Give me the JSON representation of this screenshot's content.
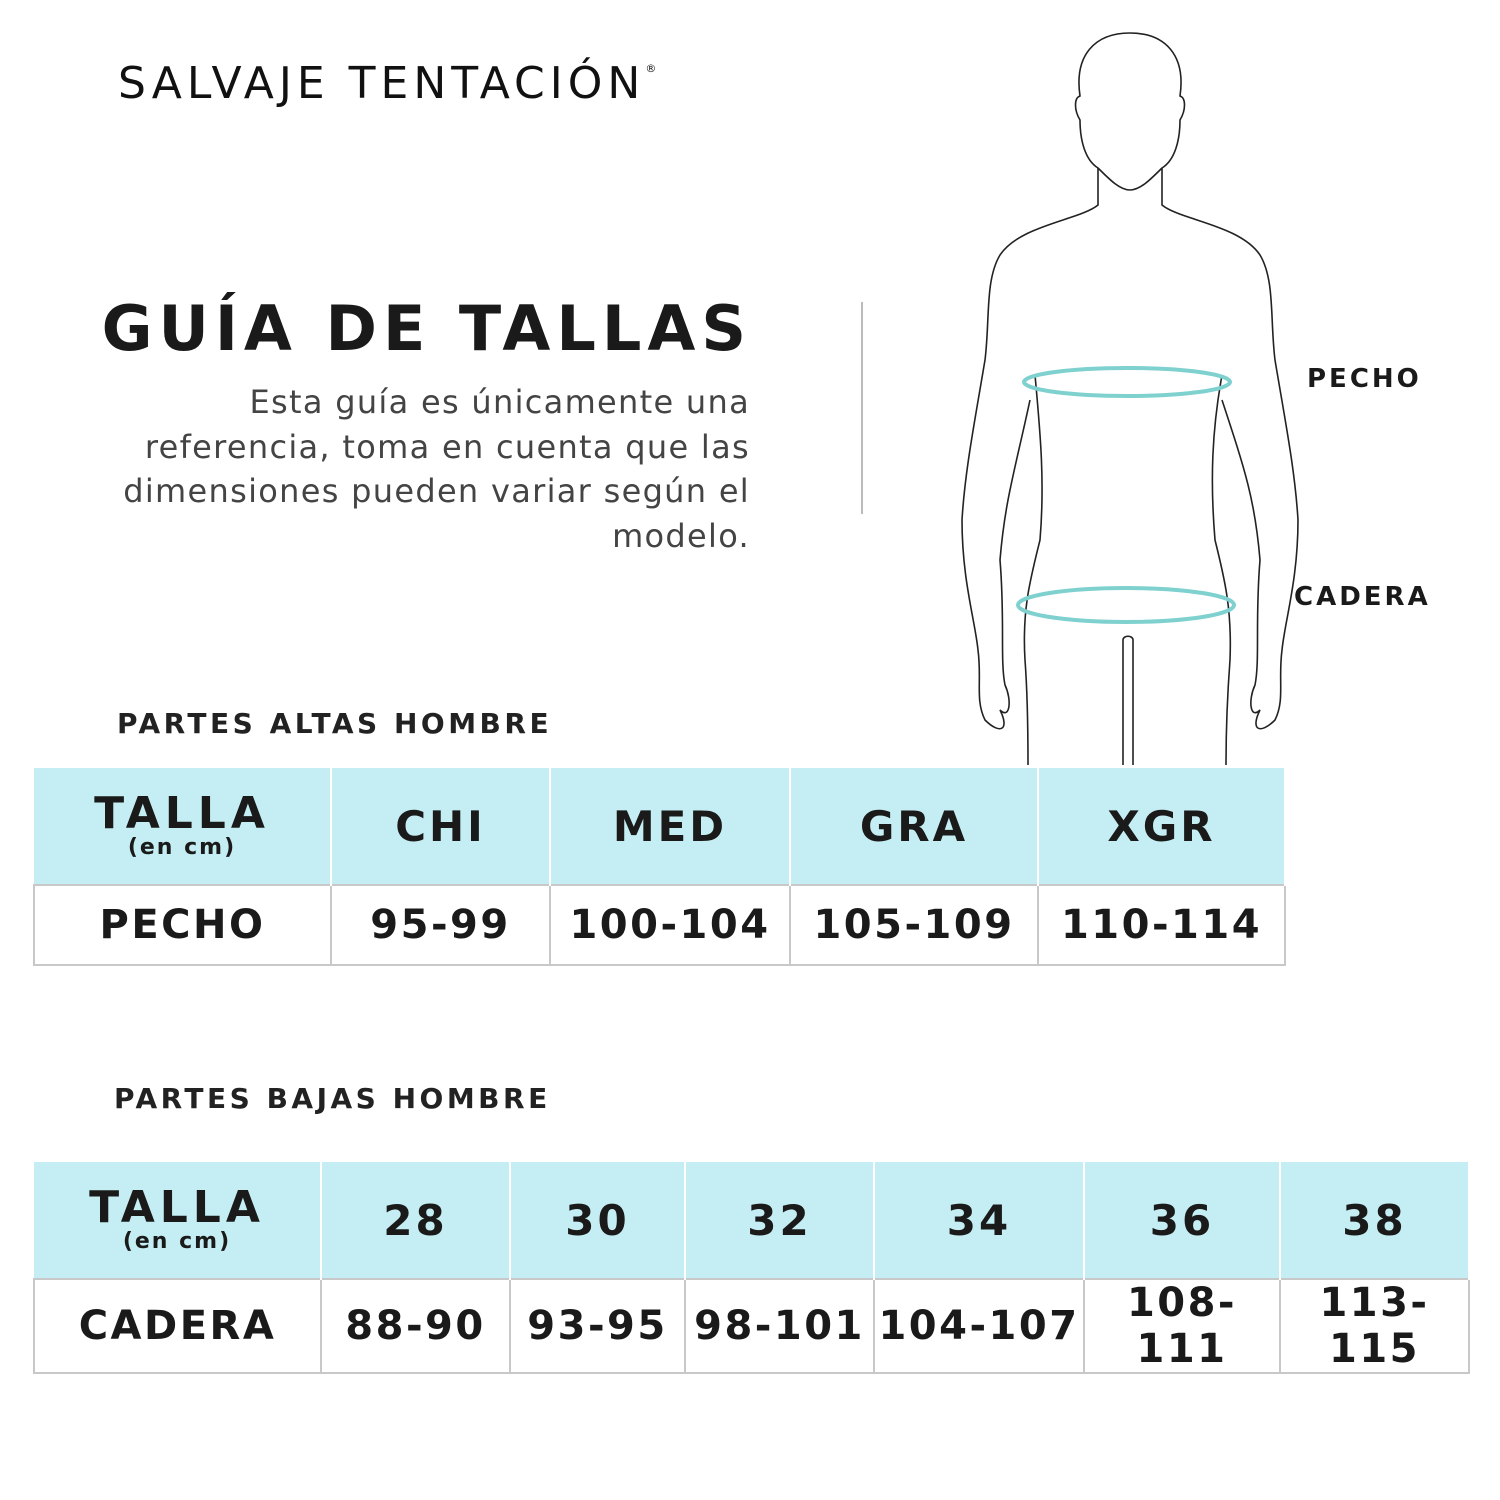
{
  "brand": {
    "name": "SALVAJE TENTACIÓN",
    "registered_mark": "®"
  },
  "header": {
    "title": "GUÍA DE TALLAS",
    "description": "Esta guía es únicamente una referencia, toma en cuenta que las dimensiones pueden variar según el modelo."
  },
  "figure": {
    "labels": {
      "chest": "PECHO",
      "hip": "CADERA"
    },
    "measure_color": "#7fd1cf"
  },
  "colors": {
    "header_bg": "#c4eef3",
    "border": "#c8c8c8"
  },
  "tops": {
    "section_title": "PARTES ALTAS HOMBRE",
    "size_label": "TALLA",
    "unit_label": "(en cm)",
    "sizes": [
      "CHI",
      "MED",
      "GRA",
      "XGR"
    ],
    "row_label": "PECHO",
    "values": [
      "95-99",
      "100-104",
      "105-109",
      "110-114"
    ]
  },
  "bottoms": {
    "section_title": "PARTES BAJAS HOMBRE",
    "size_label": "TALLA",
    "unit_label": "(en cm)",
    "sizes": [
      "28",
      "30",
      "32",
      "34",
      "36",
      "38"
    ],
    "row_label": "CADERA",
    "values": [
      "88-90",
      "93-95",
      "98-101",
      "104-107",
      "108-111",
      "113-115"
    ]
  }
}
